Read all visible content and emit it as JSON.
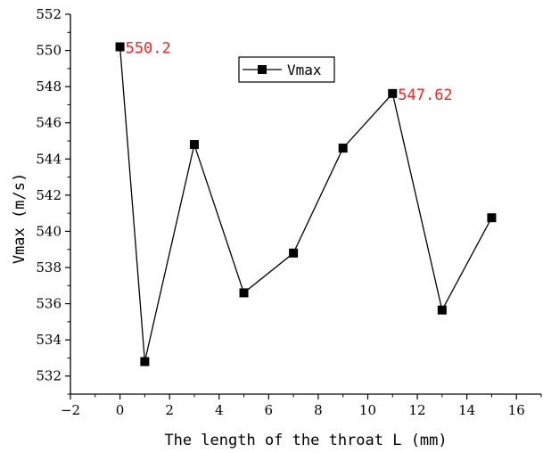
{
  "chart_data": {
    "type": "line",
    "title": "",
    "xlabel": "The length of the throat L (mm)",
    "ylabel": "Vmax (m/s)",
    "xlim": [
      -2,
      17
    ],
    "ylim": [
      531,
      552
    ],
    "xticks": [
      -2,
      0,
      2,
      4,
      6,
      8,
      10,
      12,
      14,
      16
    ],
    "xtick_labels": [
      "−2",
      "0",
      "2",
      "4",
      "6",
      "8",
      "10",
      "12",
      "14",
      "16"
    ],
    "yticks": [
      532,
      534,
      536,
      538,
      540,
      542,
      544,
      546,
      548,
      550,
      552
    ],
    "ytick_labels": [
      "532",
      "534",
      "536",
      "538",
      "540",
      "542",
      "544",
      "546",
      "548",
      "550",
      "552"
    ],
    "legend_position": "top-center",
    "series": [
      {
        "name": "Vmax",
        "color": "#000000",
        "marker": "square",
        "x": [
          0,
          1,
          3,
          5,
          7,
          9,
          11,
          13,
          15
        ],
        "y": [
          550.2,
          532.8,
          544.8,
          536.6,
          538.8,
          544.6,
          547.62,
          535.65,
          540.75
        ]
      }
    ],
    "annotations": [
      {
        "text": "550.2",
        "x": 0,
        "y": 550.2,
        "color": "#ff2020"
      },
      {
        "text": "547.62",
        "x": 11,
        "y": 547.62,
        "color": "#ff2020"
      }
    ]
  }
}
